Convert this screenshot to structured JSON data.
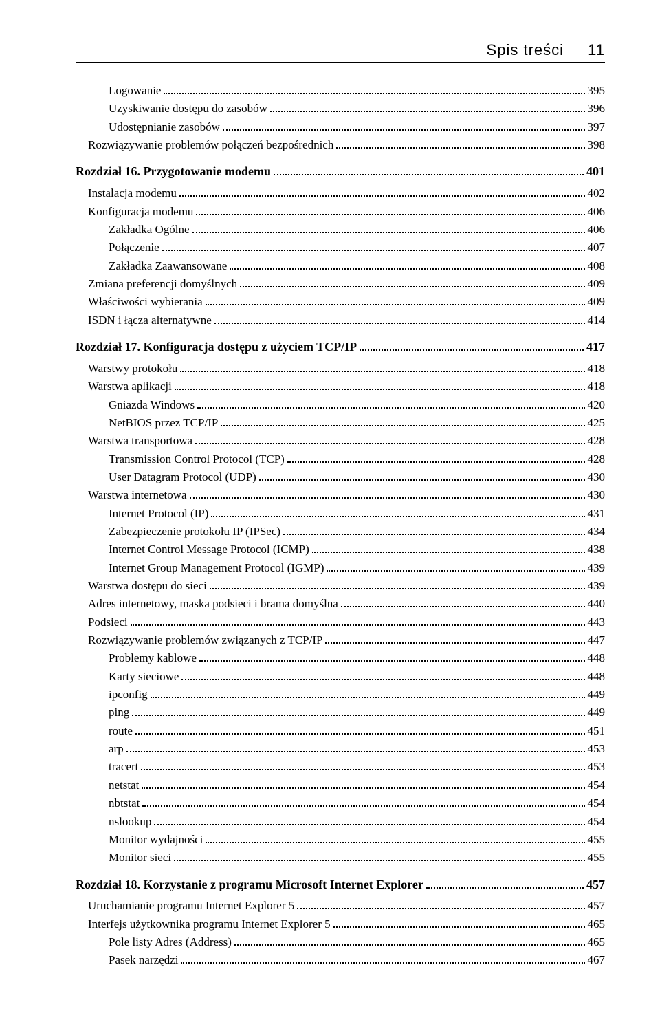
{
  "header": {
    "title": "Spis treści",
    "page_number": "11"
  },
  "toc": [
    {
      "level": 2,
      "label": "Logowanie",
      "page": "395"
    },
    {
      "level": 2,
      "label": "Uzyskiwanie dostępu do zasobów",
      "page": "396"
    },
    {
      "level": 2,
      "label": "Udostępnianie zasobów",
      "page": "397"
    },
    {
      "level": 1,
      "label": "Rozwiązywanie problemów połączeń bezpośrednich",
      "page": "398"
    },
    {
      "level": 0,
      "label": "Rozdział 16. Przygotowanie modemu",
      "page": " 401"
    },
    {
      "level": 1,
      "label": "Instalacja modemu",
      "page": "402"
    },
    {
      "level": 1,
      "label": "Konfiguracja modemu",
      "page": "406"
    },
    {
      "level": 2,
      "label": "Zakładka Ogólne",
      "page": "406"
    },
    {
      "level": 2,
      "label": "Połączenie",
      "page": "407"
    },
    {
      "level": 2,
      "label": "Zakładka Zaawansowane",
      "page": "408"
    },
    {
      "level": 1,
      "label": "Zmiana preferencji domyślnych",
      "page": "409"
    },
    {
      "level": 1,
      "label": "Właściwości wybierania",
      "page": "409"
    },
    {
      "level": 1,
      "label": "ISDN i łącza alternatywne",
      "page": "414"
    },
    {
      "level": 0,
      "label": "Rozdział 17. Konfiguracja dostępu z użyciem TCP/IP",
      "page": " 417"
    },
    {
      "level": 1,
      "label": "Warstwy protokołu",
      "page": "418"
    },
    {
      "level": 1,
      "label": "Warstwa aplikacji",
      "page": "418"
    },
    {
      "level": 2,
      "label": "Gniazda Windows",
      "page": "420"
    },
    {
      "level": 2,
      "label": "NetBIOS przez TCP/IP",
      "page": "425"
    },
    {
      "level": 1,
      "label": "Warstwa transportowa",
      "page": "428"
    },
    {
      "level": 2,
      "label": "Transmission Control Protocol (TCP)",
      "page": "428"
    },
    {
      "level": 2,
      "label": "User Datagram Protocol (UDP)",
      "page": "430"
    },
    {
      "level": 1,
      "label": "Warstwa internetowa",
      "page": "430"
    },
    {
      "level": 2,
      "label": "Internet Protocol (IP)",
      "page": "431"
    },
    {
      "level": 2,
      "label": "Zabezpieczenie protokołu IP (IPSec)",
      "page": "434"
    },
    {
      "level": 2,
      "label": "Internet Control Message Protocol (ICMP)",
      "page": "438"
    },
    {
      "level": 2,
      "label": "Internet Group Management Protocol (IGMP)",
      "page": "439"
    },
    {
      "level": 1,
      "label": "Warstwa dostępu do sieci",
      "page": "439"
    },
    {
      "level": 1,
      "label": "Adres internetowy, maska podsieci i brama domyślna",
      "page": "440"
    },
    {
      "level": 1,
      "label": "Podsieci",
      "page": "443"
    },
    {
      "level": 1,
      "label": "Rozwiązywanie problemów związanych z TCP/IP",
      "page": "447"
    },
    {
      "level": 2,
      "label": "Problemy kablowe",
      "page": "448"
    },
    {
      "level": 2,
      "label": "Karty sieciowe",
      "page": "448"
    },
    {
      "level": 2,
      "label": "ipconfig",
      "page": "449"
    },
    {
      "level": 2,
      "label": "ping",
      "page": "449"
    },
    {
      "level": 2,
      "label": "route",
      "page": "451"
    },
    {
      "level": 2,
      "label": "arp",
      "page": "453"
    },
    {
      "level": 2,
      "label": "tracert",
      "page": "453"
    },
    {
      "level": 2,
      "label": "netstat",
      "page": "454"
    },
    {
      "level": 2,
      "label": "nbtstat",
      "page": "454"
    },
    {
      "level": 2,
      "label": "nslookup",
      "page": "454"
    },
    {
      "level": 2,
      "label": "Monitor wydajności",
      "page": "455"
    },
    {
      "level": 2,
      "label": "Monitor sieci",
      "page": "455"
    },
    {
      "level": 0,
      "label": "Rozdział 18. Korzystanie z programu Microsoft Internet Explorer",
      "page": " 457"
    },
    {
      "level": 1,
      "label": "Uruchamianie programu Internet Explorer 5",
      "page": "457"
    },
    {
      "level": 1,
      "label": "Interfejs użytkownika programu Internet Explorer 5",
      "page": "465"
    },
    {
      "level": 2,
      "label": "Pole listy Adres (Address)",
      "page": "465"
    },
    {
      "level": 2,
      "label": "Pasek narzędzi",
      "page": "467"
    }
  ]
}
